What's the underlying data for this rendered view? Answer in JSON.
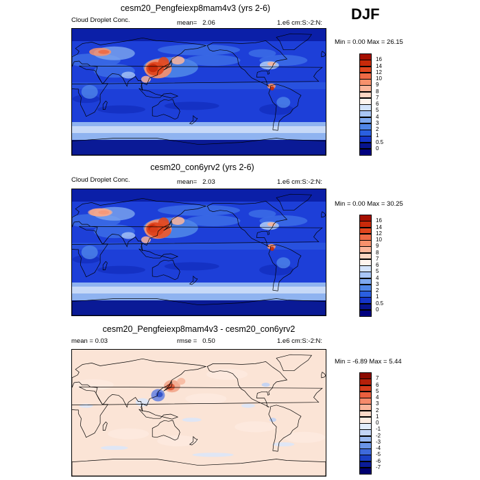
{
  "season": "DJF",
  "panels": [
    {
      "title": "cesm20_Pengfeiexp8mam4v3 (yrs 2-6)",
      "left_label": "Cloud Droplet Conc.",
      "mean_label": "mean=",
      "mean_value": "2.06",
      "units": "1.e6 cm:S:-2:N:",
      "minmax": "Min =   0.00 Max =  26.15",
      "colorbar": {
        "labels": [
          "16",
          "14",
          "12",
          "10",
          "9",
          "8",
          "7",
          "6",
          "5",
          "4",
          "3",
          "2",
          "1",
          "0.5",
          "0"
        ],
        "colors": [
          "#a50f00",
          "#c82a0a",
          "#e0461e",
          "#ef6a45",
          "#f7916c",
          "#fbb59a",
          "#fcd6c3",
          "#fff4ee",
          "#d4e3fb",
          "#a9c6f5",
          "#7ea8ef",
          "#4f86e8",
          "#2a5fe0",
          "#1535c8",
          "#07148e",
          "#000080"
        ]
      },
      "variant": "a"
    },
    {
      "title": "cesm20_con6yrv2 (yrs 2-6)",
      "left_label": "Cloud Droplet Conc.",
      "mean_label": "mean=",
      "mean_value": "2.03",
      "units": "1.e6 cm:S:-2:N:",
      "minmax": "Min =   0.00 Max =  30.25",
      "colorbar": {
        "labels": [
          "16",
          "14",
          "12",
          "10",
          "9",
          "8",
          "7",
          "6",
          "5",
          "4",
          "3",
          "2",
          "1",
          "0.5",
          "0"
        ],
        "colors": [
          "#a50f00",
          "#c82a0a",
          "#e0461e",
          "#ef6a45",
          "#f7916c",
          "#fbb59a",
          "#fcd6c3",
          "#fff4ee",
          "#d4e3fb",
          "#a9c6f5",
          "#7ea8ef",
          "#4f86e8",
          "#2a5fe0",
          "#1535c8",
          "#07148e",
          "#000080"
        ]
      },
      "variant": "b"
    },
    {
      "title": "cesm20_Pengfeiexp8mam4v3 - cesm20_con6yrv2",
      "left_label": "mean =   0.03",
      "mean_label": "rmse =",
      "mean_value": "0.50",
      "units": "1.e6 cm:S:-2:N:",
      "minmax": "Min =  -6.89 Max =   5.44",
      "colorbar": {
        "labels": [
          "7",
          "6",
          "5",
          "4",
          "3",
          "2",
          "1",
          "0",
          "-1",
          "-2",
          "-3",
          "-4",
          "-5",
          "-6",
          "-7"
        ],
        "colors": [
          "#8b0a00",
          "#b5200a",
          "#d63c1c",
          "#ea5f3e",
          "#f58a6b",
          "#f9b49a",
          "#fcd9c8",
          "#fdece2",
          "#e2ecfb",
          "#c3d5f6",
          "#9ab9f0",
          "#6a95e7",
          "#3e6adb",
          "#1a3fc4",
          "#0b1c98",
          "#000070"
        ]
      },
      "variant": "d"
    }
  ]
}
